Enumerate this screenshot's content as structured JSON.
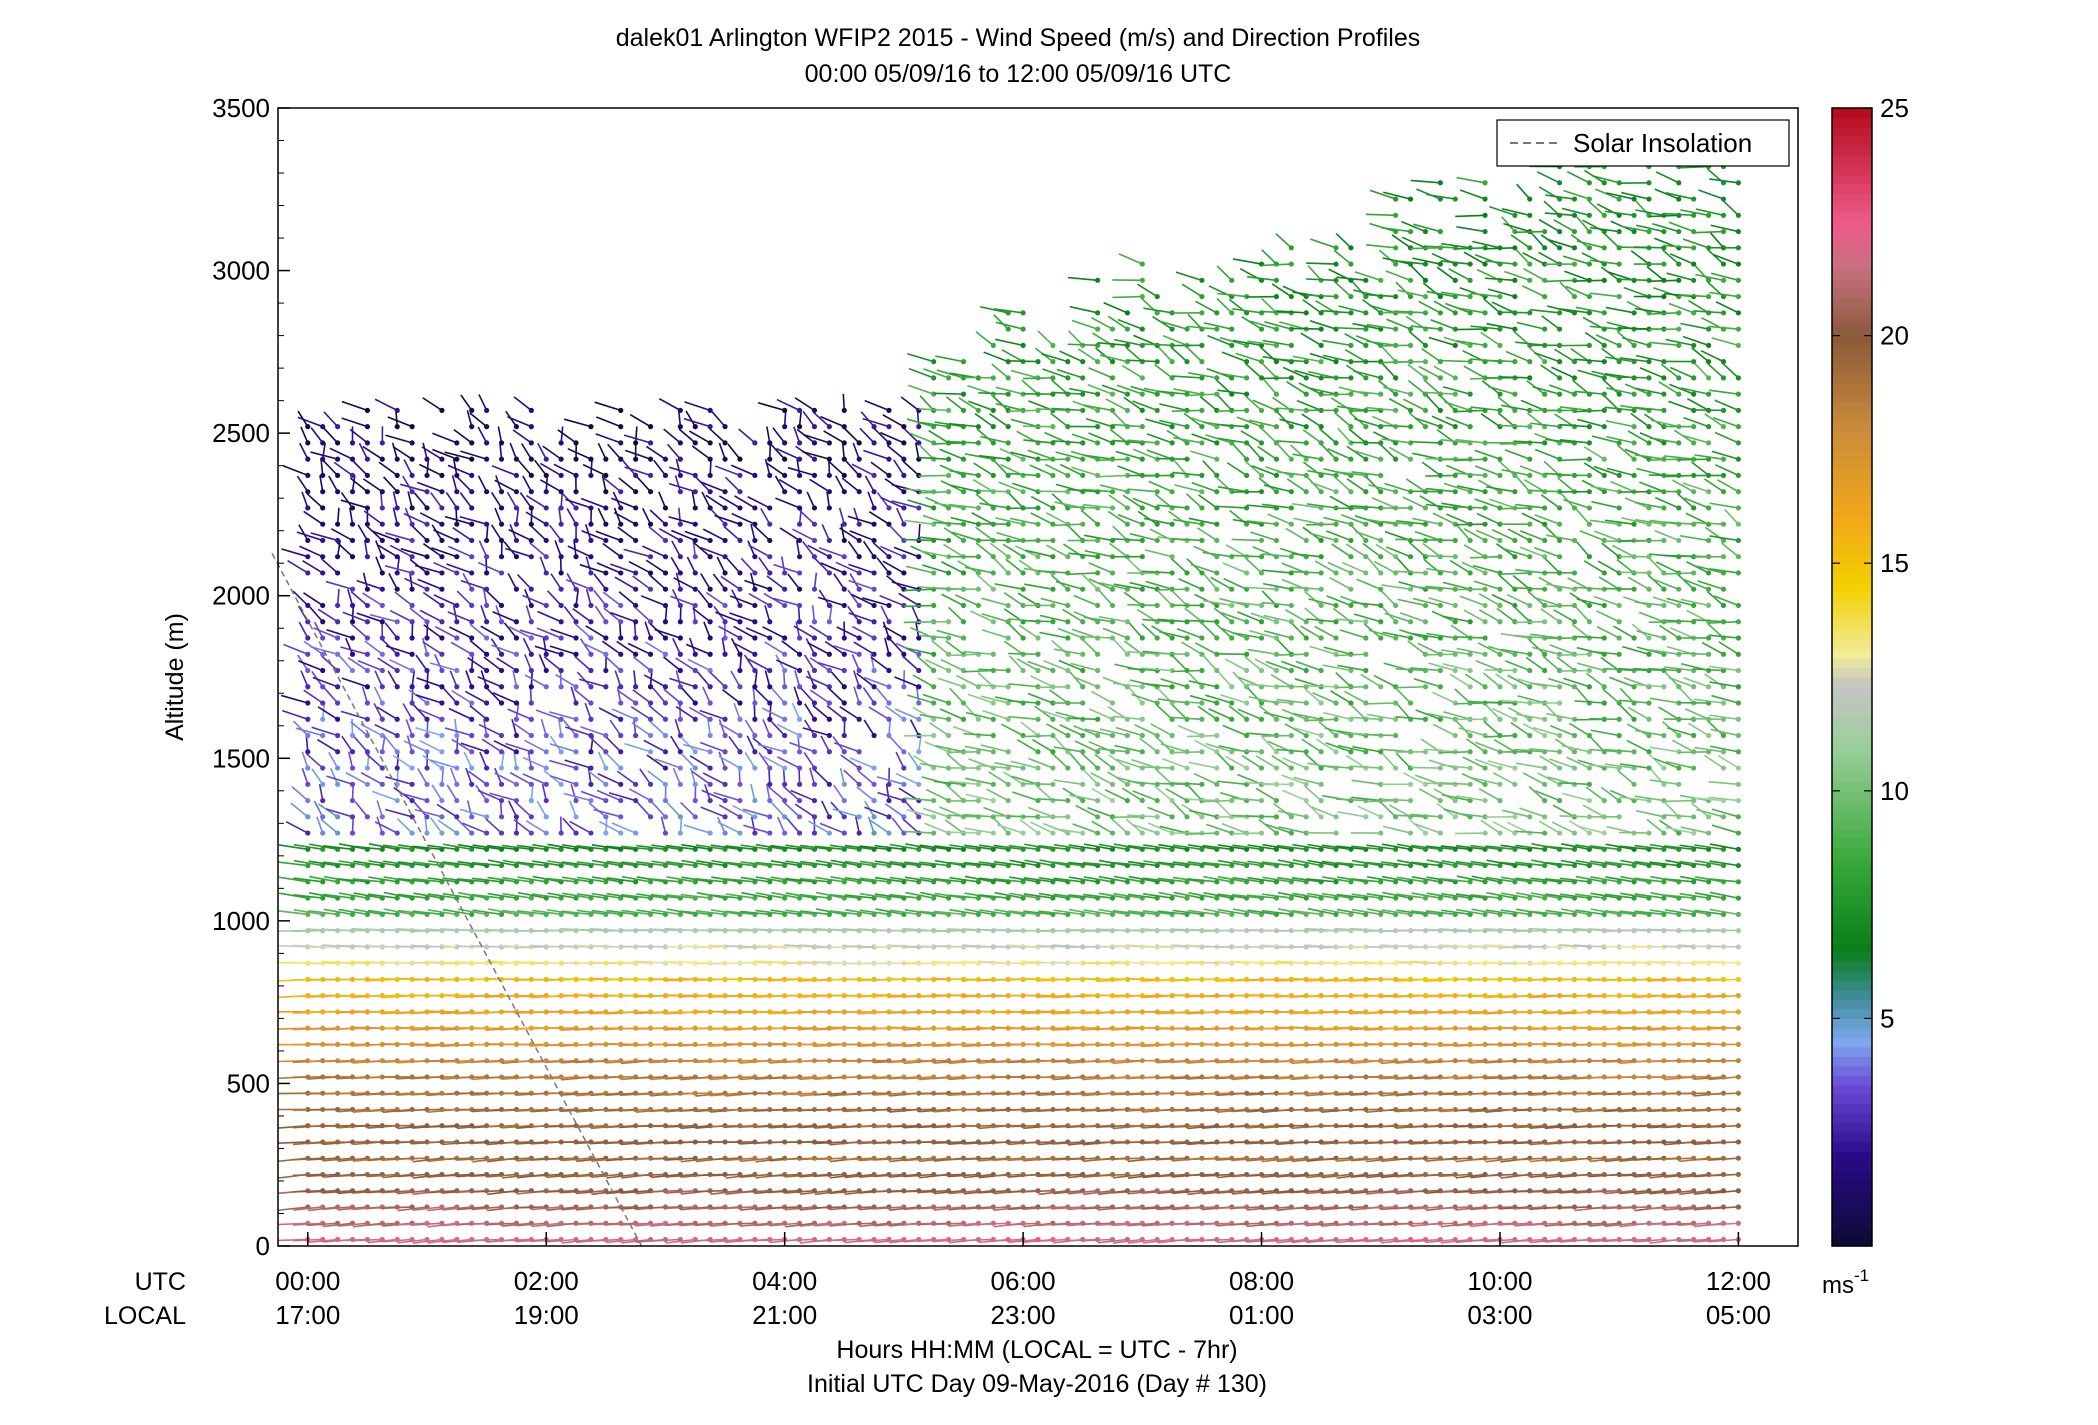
{
  "chart_data": {
    "type": "wind-barb-profile",
    "title": "dalek01 Arlington WFIP2 2015 - Wind Speed (m/s) and Direction Profiles",
    "subtitle": "00:00 05/09/16 to 12:00 05/09/16  UTC",
    "ylabel": "Altitude (m)",
    "xlabel_line1": "Hours HH:MM  (LOCAL = UTC - 7hr)",
    "xlabel_line2": "Initial UTC Day 09-May-2016 (Day # 130)",
    "x_row_labels": {
      "utc": "UTC",
      "local": "LOCAL"
    },
    "ylim": [
      0,
      3500
    ],
    "xlim_hours": [
      -0.25,
      12.5
    ],
    "y_ticks": [
      0,
      500,
      1000,
      1500,
      2000,
      2500,
      3000,
      3500
    ],
    "x_ticks": [
      {
        "hour": 0,
        "utc": "00:00",
        "local": "17:00"
      },
      {
        "hour": 2,
        "utc": "02:00",
        "local": "19:00"
      },
      {
        "hour": 4,
        "utc": "04:00",
        "local": "21:00"
      },
      {
        "hour": 6,
        "utc": "06:00",
        "local": "23:00"
      },
      {
        "hour": 8,
        "utc": "08:00",
        "local": "01:00"
      },
      {
        "hour": 10,
        "utc": "10:00",
        "local": "03:00"
      },
      {
        "hour": 12,
        "utc": "12:00",
        "local": "05:00"
      }
    ],
    "legend": {
      "entries": [
        "Solar Insolation"
      ],
      "position": "top-right"
    },
    "colorbar": {
      "unit_label": "ms",
      "unit_exponent": "-1",
      "range": [
        0,
        25
      ],
      "tick_values": [
        5,
        10,
        15,
        20,
        25
      ],
      "tick_labels": [
        "5",
        "10",
        "15",
        "20",
        "25"
      ]
    },
    "colormap": [
      [
        0,
        "#0d0b33"
      ],
      [
        2,
        "#2a0a8a"
      ],
      [
        3.5,
        "#6b49d6"
      ],
      [
        4.5,
        "#7fa8ee"
      ],
      [
        5.5,
        "#3e8c96"
      ],
      [
        6.5,
        "#087e18"
      ],
      [
        8.5,
        "#3aa93a"
      ],
      [
        11,
        "#9ccf9c"
      ],
      [
        12.3,
        "#c4c4c4"
      ],
      [
        13,
        "#f2ec98"
      ],
      [
        14.5,
        "#f2d000"
      ],
      [
        16,
        "#f2a81a"
      ],
      [
        18,
        "#c98a3c"
      ],
      [
        20,
        "#8a5a3a"
      ],
      [
        21.5,
        "#c87080"
      ],
      [
        22.5,
        "#f05a8a"
      ],
      [
        25,
        "#b20a1a"
      ]
    ],
    "solar_insolation": {
      "x_hours": [
        -0.3,
        2.8
      ],
      "y_m": [
        2130,
        0
      ]
    },
    "wind_regimes": [
      {
        "z": [
          0,
          300
        ],
        "speed": [
          22,
          19
        ],
        "dir": 262
      },
      {
        "z": [
          300,
          600
        ],
        "speed": [
          20,
          18
        ],
        "dir": 265
      },
      {
        "z": [
          600,
          850
        ],
        "speed": [
          17.5,
          15
        ],
        "dir": 268
      },
      {
        "z": [
          850,
          1000
        ],
        "speed": [
          13.5,
          11
        ],
        "dir": 272
      },
      {
        "z": [
          1000,
          1250
        ],
        "speed": [
          9,
          7
        ],
        "dir": 285
      },
      {
        "z": [
          1250,
          2600
        ],
        "speed": [
          4,
          1
        ],
        "dir": 330,
        "period": "early"
      },
      {
        "z": [
          1250,
          3450
        ],
        "speed": [
          10,
          7
        ],
        "dir": 300,
        "period": "late"
      }
    ]
  }
}
